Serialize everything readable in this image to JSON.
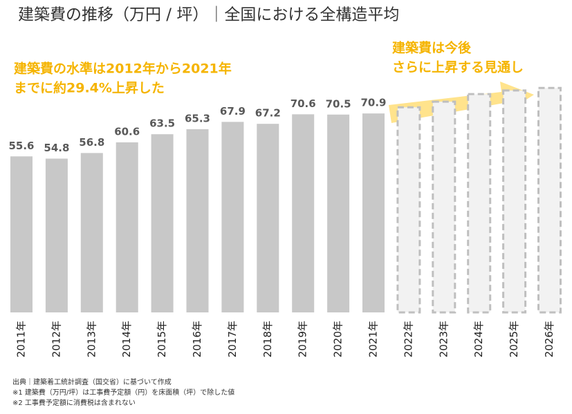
{
  "chart_data": {
    "type": "bar",
    "title": "建築費の推移（万円 / 坪）｜全国における全構造平均",
    "categories": [
      "2011年",
      "2012年",
      "2013年",
      "2014年",
      "2015年",
      "2016年",
      "2017年",
      "2018年",
      "2019年",
      "2020年",
      "2021年",
      "2022年",
      "2023年",
      "2024年",
      "2025年",
      "2026年"
    ],
    "series": [
      {
        "color": "#c8c8c8",
        "values": [
          55.6,
          54.8,
          56.8,
          60.6,
          63.5,
          65.3,
          67.9,
          67.2,
          70.6,
          70.5,
          70.9,
          null,
          null,
          null,
          null,
          null
        ]
      },
      {
        "color": "#f2f2f2",
        "style": "dashed",
        "values": [
          null,
          null,
          null,
          null,
          null,
          null,
          null,
          null,
          null,
          null,
          null,
          73.1,
          75.1,
          77.8,
          79.1,
          80.0
        ]
      }
    ],
    "ylim": [
      0,
      110
    ],
    "annotations": [
      [
        "建築費の水準は2012年から2021年",
        "までに約29.4%上昇した"
      ],
      [
        "建築費は今後",
        "さらに上昇する見通し"
      ]
    ],
    "footnotes": [
      "出典｜建築着工統計調査（国交省）に基づいて作成",
      "※1 建築費（万円/坪）は工事費予定額（円）を床面積（坪）で除した値",
      "※2 工事費予定額に消費税は含まれない"
    ]
  }
}
